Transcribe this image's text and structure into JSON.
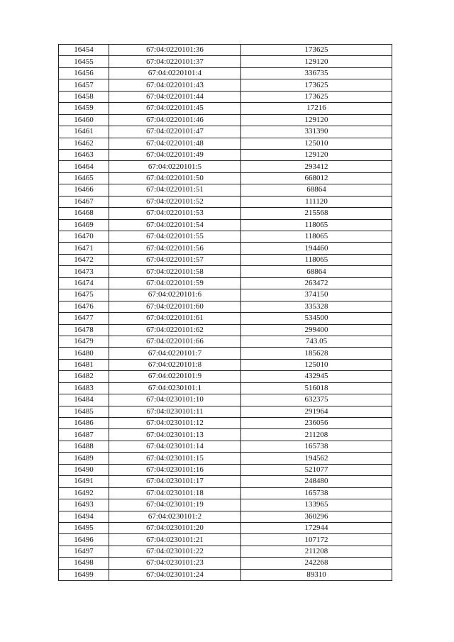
{
  "table": {
    "rows": [
      [
        "16454",
        "67:04:0220101:36",
        "173625"
      ],
      [
        "16455",
        "67:04:0220101:37",
        "129120"
      ],
      [
        "16456",
        "67:04:0220101:4",
        "336735"
      ],
      [
        "16457",
        "67:04:0220101:43",
        "173625"
      ],
      [
        "16458",
        "67:04:0220101:44",
        "173625"
      ],
      [
        "16459",
        "67:04:0220101:45",
        "17216"
      ],
      [
        "16460",
        "67:04:0220101:46",
        "129120"
      ],
      [
        "16461",
        "67:04:0220101:47",
        "331390"
      ],
      [
        "16462",
        "67:04:0220101:48",
        "125010"
      ],
      [
        "16463",
        "67:04:0220101:49",
        "129120"
      ],
      [
        "16464",
        "67:04:0220101:5",
        "293412"
      ],
      [
        "16465",
        "67:04:0220101:50",
        "668012"
      ],
      [
        "16466",
        "67:04:0220101:51",
        "68864"
      ],
      [
        "16467",
        "67:04:0220101:52",
        "111120"
      ],
      [
        "16468",
        "67:04:0220101:53",
        "215568"
      ],
      [
        "16469",
        "67:04:0220101:54",
        "118065"
      ],
      [
        "16470",
        "67:04:0220101:55",
        "118065"
      ],
      [
        "16471",
        "67:04:0220101:56",
        "194460"
      ],
      [
        "16472",
        "67:04:0220101:57",
        "118065"
      ],
      [
        "16473",
        "67:04:0220101:58",
        "68864"
      ],
      [
        "16474",
        "67:04:0220101:59",
        "263472"
      ],
      [
        "16475",
        "67:04:0220101:6",
        "374150"
      ],
      [
        "16476",
        "67:04:0220101:60",
        "335328"
      ],
      [
        "16477",
        "67:04:0220101:61",
        "534500"
      ],
      [
        "16478",
        "67:04:0220101:62",
        "299400"
      ],
      [
        "16479",
        "67:04:0220101:66",
        "743.05"
      ],
      [
        "16480",
        "67:04:0220101:7",
        "185628"
      ],
      [
        "16481",
        "67:04:0220101:8",
        "125010"
      ],
      [
        "16482",
        "67:04:0220101:9",
        "432945"
      ],
      [
        "16483",
        "67:04:0230101:1",
        "516018"
      ],
      [
        "16484",
        "67:04:0230101:10",
        "632375"
      ],
      [
        "16485",
        "67:04:0230101:11",
        "291964"
      ],
      [
        "16486",
        "67:04:0230101:12",
        "236056"
      ],
      [
        "16487",
        "67:04:0230101:13",
        "211208"
      ],
      [
        "16488",
        "67:04:0230101:14",
        "165738"
      ],
      [
        "16489",
        "67:04:0230101:15",
        "194562"
      ],
      [
        "16490",
        "67:04:0230101:16",
        "521077"
      ],
      [
        "16491",
        "67:04:0230101:17",
        "248480"
      ],
      [
        "16492",
        "67:04:0230101:18",
        "165738"
      ],
      [
        "16493",
        "67:04:0230101:19",
        "133965"
      ],
      [
        "16494",
        "67:04:0230101:2",
        "360296"
      ],
      [
        "16495",
        "67:04:0230101:20",
        "172944"
      ],
      [
        "16496",
        "67:04:0230101:21",
        "107172"
      ],
      [
        "16497",
        "67:04:0230101:22",
        "211208"
      ],
      [
        "16498",
        "67:04:0230101:23",
        "242268"
      ],
      [
        "16499",
        "67:04:0230101:24",
        "89310"
      ]
    ]
  }
}
